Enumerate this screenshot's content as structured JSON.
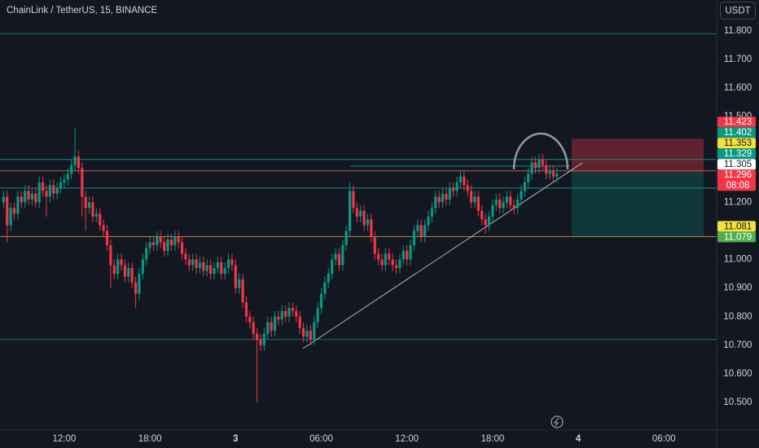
{
  "chart_data": {
    "type": "candlestick",
    "title": "ChainLink / TetherUS, 15, BINANCE",
    "currency": "USDT",
    "up_color": "#089981",
    "down_color": "#f23645",
    "xlim": [
      7.5,
      57.69
    ],
    "ylim": [
      10.403,
      11.908
    ],
    "xticks": [
      {
        "value": 12,
        "label": "12:00"
      },
      {
        "value": 18,
        "label": "18:00"
      },
      {
        "value": 24,
        "label": "3"
      },
      {
        "value": 30,
        "label": "06:00"
      },
      {
        "value": 36,
        "label": "12:00"
      },
      {
        "value": 42,
        "label": "18:00"
      },
      {
        "value": 48,
        "label": "4"
      },
      {
        "value": 54,
        "label": "06:00"
      }
    ],
    "yticks": [
      {
        "value": 10.5,
        "label": "10.500"
      },
      {
        "value": 10.6,
        "label": "10.600"
      },
      {
        "value": 10.7,
        "label": "10.700"
      },
      {
        "value": 10.8,
        "label": "10.800"
      },
      {
        "value": 10.9,
        "label": "10.900"
      },
      {
        "value": 11.0,
        "label": "11.000"
      },
      {
        "value": 11.1,
        "label": "11.100"
      },
      {
        "value": 11.2,
        "label": "11.200"
      },
      {
        "value": 11.3,
        "label": "11.300"
      },
      {
        "value": 11.4,
        "label": "11.400"
      },
      {
        "value": 11.5,
        "label": "11.500"
      },
      {
        "value": 11.6,
        "label": "11.600"
      },
      {
        "value": 11.7,
        "label": "11.700"
      },
      {
        "value": 11.8,
        "label": "11.800"
      }
    ],
    "x": [
      7.75,
      8,
      8.25,
      8.5,
      8.75,
      9,
      9.25,
      9.5,
      9.75,
      10,
      10.25,
      10.5,
      10.75,
      11,
      11.25,
      11.5,
      11.75,
      12,
      12.25,
      12.5,
      12.75,
      13,
      13.25,
      13.5,
      13.75,
      14,
      14.25,
      14.5,
      14.75,
      15,
      15.25,
      15.5,
      15.75,
      16,
      16.25,
      16.5,
      16.75,
      17,
      17.25,
      17.5,
      17.75,
      18,
      18.25,
      18.5,
      18.75,
      19,
      19.25,
      19.5,
      19.75,
      20,
      20.25,
      20.5,
      20.75,
      21,
      21.25,
      21.5,
      21.75,
      22,
      22.25,
      22.5,
      22.75,
      23,
      23.25,
      23.5,
      23.75,
      24,
      24.25,
      24.5,
      24.75,
      25,
      25.25,
      25.5,
      25.75,
      26,
      26.25,
      26.5,
      26.75,
      27,
      27.25,
      27.5,
      27.75,
      28,
      28.25,
      28.5,
      28.75,
      29,
      29.25,
      29.5,
      29.75,
      30,
      30.25,
      30.5,
      30.75,
      31,
      31.25,
      31.5,
      31.75,
      32,
      32.25,
      32.5,
      32.75,
      33,
      33.25,
      33.5,
      33.75,
      34,
      34.25,
      34.5,
      34.75,
      35,
      35.25,
      35.5,
      35.75,
      36,
      36.25,
      36.5,
      36.75,
      37,
      37.25,
      37.5,
      37.75,
      38,
      38.25,
      38.5,
      38.75,
      39,
      39.25,
      39.5,
      39.75,
      40,
      40.25,
      40.5,
      40.75,
      41,
      41.25,
      41.5,
      41.75,
      42,
      42.25,
      42.5,
      42.75,
      43,
      43.25,
      43.5,
      43.75,
      44,
      44.25,
      44.5,
      44.75,
      45,
      45.25,
      45.5,
      45.75,
      46,
      46.25,
      46.5
    ],
    "open": [
      11.2,
      11.22,
      11.12,
      11.18,
      11.16,
      11.22,
      11.2,
      11.24,
      11.21,
      11.23,
      11.2,
      11.27,
      11.24,
      11.22,
      11.26,
      11.23,
      11.25,
      11.27,
      11.28,
      11.3,
      11.33,
      11.36,
      11.32,
      11.22,
      11.18,
      11.2,
      11.15,
      11.16,
      11.12,
      11.1,
      11.05,
      10.98,
      10.95,
      11.0,
      10.98,
      10.94,
      10.97,
      10.92,
      10.88,
      10.95,
      11.0,
      11.04,
      11.06,
      11.05,
      11.08,
      11.06,
      11.03,
      11.07,
      11.05,
      11.08,
      11.06,
      11.02,
      11.0,
      10.98,
      11.0,
      10.97,
      10.99,
      10.96,
      10.98,
      10.95,
      10.97,
      10.99,
      10.95,
      10.97,
      11.0,
      10.98,
      10.9,
      10.93,
      10.85,
      10.8,
      10.78,
      10.74,
      10.72,
      10.7,
      10.74,
      10.78,
      10.75,
      10.8,
      10.79,
      10.82,
      10.8,
      10.83,
      10.82,
      10.8,
      10.76,
      10.73,
      10.75,
      10.72,
      10.78,
      10.83,
      10.88,
      10.92,
      10.95,
      11.0,
      11.02,
      10.98,
      11.05,
      11.1,
      11.24,
      11.18,
      11.15,
      11.17,
      11.12,
      11.14,
      11.08,
      11.02,
      11.0,
      10.98,
      11.02,
      11.0,
      10.98,
      10.97,
      11.0,
      11.03,
      11.0,
      11.05,
      11.1,
      11.12,
      11.08,
      11.12,
      11.15,
      11.18,
      11.22,
      11.2,
      11.23,
      11.21,
      11.25,
      11.24,
      11.27,
      11.29,
      11.26,
      11.24,
      11.2,
      11.22,
      11.17,
      11.14,
      11.12,
      11.15,
      11.19,
      11.21,
      11.18,
      11.2,
      11.22,
      11.19,
      11.18,
      11.21,
      11.24,
      11.27,
      11.3,
      11.34,
      11.32,
      11.35,
      11.33,
      11.3,
      11.31,
      11.29
    ],
    "high": [
      11.24,
      11.24,
      11.2,
      11.2,
      11.24,
      11.24,
      11.26,
      11.26,
      11.25,
      11.25,
      11.29,
      11.29,
      11.26,
      11.28,
      11.28,
      11.27,
      11.29,
      11.3,
      11.32,
      11.35,
      11.46,
      11.38,
      11.34,
      11.24,
      11.22,
      11.22,
      11.18,
      11.18,
      11.14,
      11.12,
      11.07,
      11.0,
      11.02,
      11.02,
      11.0,
      10.99,
      10.99,
      10.94,
      10.97,
      11.02,
      11.06,
      11.08,
      11.08,
      11.1,
      11.1,
      11.08,
      11.09,
      11.09,
      11.1,
      11.1,
      11.08,
      11.04,
      11.02,
      11.02,
      11.02,
      11.01,
      11.01,
      11.0,
      11.0,
      10.99,
      11.01,
      11.01,
      10.99,
      11.02,
      11.02,
      11.0,
      10.95,
      10.95,
      10.87,
      10.82,
      10.8,
      10.76,
      10.74,
      10.76,
      10.8,
      10.8,
      10.82,
      10.82,
      10.84,
      10.84,
      10.85,
      10.85,
      10.84,
      10.82,
      10.78,
      10.77,
      10.77,
      10.8,
      10.85,
      10.9,
      10.94,
      10.97,
      11.02,
      11.04,
      11.04,
      11.07,
      11.12,
      11.27,
      11.26,
      11.2,
      11.19,
      11.19,
      11.16,
      11.16,
      11.1,
      11.04,
      11.02,
      11.04,
      11.04,
      11.02,
      11.0,
      11.02,
      11.05,
      11.05,
      11.07,
      11.12,
      11.14,
      11.14,
      11.14,
      11.17,
      11.2,
      11.24,
      11.24,
      11.25,
      11.25,
      11.27,
      11.27,
      11.29,
      11.31,
      11.31,
      11.28,
      11.26,
      11.24,
      11.24,
      11.19,
      11.16,
      11.17,
      11.21,
      11.23,
      11.23,
      11.22,
      11.24,
      11.24,
      11.21,
      11.23,
      11.26,
      11.29,
      11.32,
      11.36,
      11.36,
      11.37,
      11.37,
      11.35,
      11.33,
      11.33,
      11.32
    ],
    "low": [
      11.18,
      11.06,
      11.1,
      11.14,
      11.14,
      11.18,
      11.18,
      11.19,
      11.19,
      11.18,
      11.18,
      11.22,
      11.15,
      11.2,
      11.21,
      11.21,
      11.23,
      11.25,
      11.26,
      11.28,
      11.31,
      11.3,
      11.15,
      11.1,
      11.16,
      11.13,
      11.13,
      11.1,
      11.08,
      11.03,
      10.9,
      10.93,
      10.93,
      10.96,
      10.92,
      10.92,
      10.9,
      10.83,
      10.86,
      10.93,
      10.98,
      11.02,
      11.03,
      11.03,
      11.04,
      11.01,
      11.01,
      11.03,
      11.03,
      11.04,
      11.0,
      10.98,
      10.96,
      10.96,
      10.95,
      10.95,
      10.94,
      10.94,
      10.93,
      10.93,
      10.95,
      10.93,
      10.93,
      10.95,
      10.96,
      10.88,
      10.88,
      10.83,
      10.78,
      10.76,
      10.72,
      10.5,
      10.68,
      10.68,
      10.72,
      10.73,
      10.73,
      10.77,
      10.77,
      10.78,
      10.78,
      10.8,
      10.78,
      10.74,
      10.71,
      10.71,
      10.7,
      10.7,
      10.76,
      10.81,
      10.86,
      10.9,
      10.93,
      10.98,
      10.96,
      10.96,
      11.03,
      11.08,
      11.16,
      11.13,
      11.13,
      11.1,
      11.1,
      11.06,
      11.0,
      10.98,
      10.96,
      10.96,
      10.98,
      10.96,
      10.95,
      10.95,
      10.98,
      10.98,
      10.98,
      11.03,
      11.08,
      11.06,
      11.06,
      11.1,
      11.13,
      11.16,
      11.18,
      11.18,
      11.19,
      11.19,
      11.22,
      11.22,
      11.25,
      11.24,
      11.22,
      11.18,
      11.18,
      11.15,
      11.12,
      11.09,
      11.1,
      11.13,
      11.17,
      11.16,
      11.16,
      11.18,
      11.17,
      11.16,
      11.16,
      11.19,
      11.22,
      11.25,
      11.28,
      11.3,
      11.3,
      11.31,
      11.28,
      11.28,
      11.27,
      11.27
    ],
    "close": [
      11.22,
      11.12,
      11.18,
      11.16,
      11.22,
      11.2,
      11.24,
      11.21,
      11.23,
      11.2,
      11.27,
      11.24,
      11.22,
      11.26,
      11.23,
      11.25,
      11.27,
      11.28,
      11.3,
      11.33,
      11.36,
      11.32,
      11.22,
      11.18,
      11.2,
      11.15,
      11.16,
      11.12,
      11.1,
      11.05,
      10.98,
      10.95,
      11.0,
      10.98,
      10.94,
      10.97,
      10.92,
      10.88,
      10.95,
      11.0,
      11.04,
      11.06,
      11.05,
      11.08,
      11.06,
      11.03,
      11.07,
      11.05,
      11.08,
      11.06,
      11.02,
      11.0,
      10.98,
      11.0,
      10.97,
      10.99,
      10.96,
      10.98,
      10.95,
      10.97,
      10.99,
      10.95,
      10.97,
      11.0,
      10.98,
      10.9,
      10.93,
      10.85,
      10.8,
      10.78,
      10.74,
      10.72,
      10.7,
      10.74,
      10.78,
      10.75,
      10.8,
      10.79,
      10.82,
      10.8,
      10.83,
      10.82,
      10.8,
      10.76,
      10.73,
      10.75,
      10.72,
      10.78,
      10.83,
      10.88,
      10.92,
      10.95,
      11.0,
      11.02,
      10.98,
      11.05,
      11.1,
      11.24,
      11.18,
      11.15,
      11.17,
      11.12,
      11.14,
      11.08,
      11.02,
      11.0,
      10.98,
      11.02,
      11.0,
      10.98,
      10.97,
      11.0,
      11.03,
      11.0,
      11.05,
      11.1,
      11.12,
      11.08,
      11.12,
      11.15,
      11.18,
      11.22,
      11.2,
      11.23,
      11.21,
      11.25,
      11.24,
      11.27,
      11.29,
      11.26,
      11.24,
      11.2,
      11.22,
      11.17,
      11.14,
      11.12,
      11.15,
      11.19,
      11.21,
      11.18,
      11.2,
      11.22,
      11.19,
      11.18,
      11.21,
      11.24,
      11.27,
      11.3,
      11.34,
      11.32,
      11.35,
      11.33,
      11.3,
      11.31,
      11.29,
      11.3
    ],
    "horizontal_lines": [
      {
        "value": 11.79,
        "color": "#1f6f68"
      },
      {
        "value": 11.35,
        "color": "#1f8a80"
      },
      {
        "value": 11.31,
        "color": "#a0703a"
      },
      {
        "value": 11.25,
        "color": "#1f8a80"
      },
      {
        "value": 11.08,
        "color": "#b08a35"
      },
      {
        "value": 10.72,
        "color": "#1f6f68"
      }
    ],
    "trendline": {
      "x": [
        28.71,
        48.28
      ],
      "y": [
        10.688,
        11.338
      ],
      "color": "#b2b5be"
    },
    "segment": {
      "x": [
        32.02,
        47.42
      ],
      "y": [
        11.327,
        11.327
      ],
      "color": "#1f8a80"
    },
    "position": {
      "x": [
        47.54,
        56.78
      ],
      "entry": 11.305,
      "stop": 11.423,
      "target": 11.081,
      "stop_color": "rgba(242,54,69,0.35)",
      "target_color": "rgba(8,153,129,0.25)"
    },
    "price_labels": [
      {
        "value": 11.423,
        "color": "#f23645",
        "text_color": "#ffffff"
      },
      {
        "value": 11.402,
        "color": "#089981",
        "text_color": "#ffffff"
      },
      {
        "value": 11.353,
        "color": "#f5e13c",
        "text_color": "#131722"
      },
      {
        "value": 11.329,
        "color": "#089981",
        "text_color": "#ffffff"
      },
      {
        "value": 11.305,
        "color": "#ffffff",
        "text_color": "#131722"
      },
      {
        "value": 11.296,
        "color": "#f23645",
        "text_color": "#ffffff",
        "countdown": "08:08"
      },
      {
        "value": 11.081,
        "color": "#f5e13c",
        "text_color": "#131722"
      },
      {
        "value": 11.079,
        "color": "#4caf50",
        "text_color": "#ffffff"
      }
    ]
  }
}
